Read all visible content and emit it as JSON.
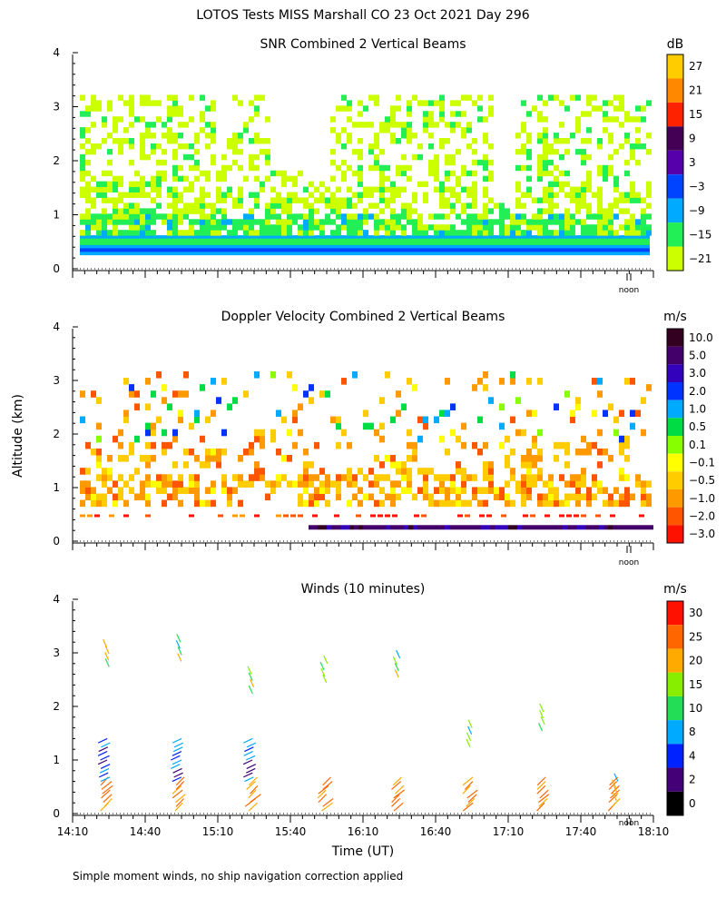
{
  "title": "LOTOS Tests MISS Marshall CO  23 Oct 2021 Day 296",
  "ylabel": "Altitude (km)",
  "xlabel": "Time (UT)",
  "footnote": "Simple moment winds, no ship navigation correction applied",
  "noon_label": "noon",
  "colors": {
    "text": "#000000",
    "axis": "#000000"
  },
  "chart_data": [
    {
      "type": "heatmap",
      "title": "SNR Combined 2 Vertical Beams",
      "units": "dB",
      "ylim": [
        0,
        4
      ],
      "yticks": [
        "0",
        "1",
        "2",
        "3",
        "4"
      ],
      "colorbar": {
        "labels": [
          "27",
          "21",
          "15",
          "9",
          "3",
          "−3",
          "−9",
          "−15",
          "−21"
        ],
        "colors": [
          "#ffcc00",
          "#ff8800",
          "#ff2200",
          "#440055",
          "#5500aa",
          "#0044ff",
          "#00aaff",
          "#22ee55",
          "#ccff00"
        ]
      },
      "layers": [
        {
          "name": "near-surface strong echo",
          "from_km": 0.25,
          "to_km": 0.65,
          "dominant_db": "-9"
        },
        {
          "name": "lower boundary layer",
          "from_km": 0.65,
          "to_km": 1.0,
          "dominant_db": "-15"
        },
        {
          "name": "upper patchy echoes",
          "from_km": 1.0,
          "to_km": 3.3,
          "dominant_db": "-21"
        }
      ]
    },
    {
      "type": "heatmap",
      "title": "Doppler Velocity Combined 2 Vertical Beams",
      "units": "m/s",
      "ylim": [
        0,
        4
      ],
      "yticks": [
        "0",
        "1",
        "2",
        "3",
        "4"
      ],
      "colorbar": {
        "labels": [
          "10.0",
          "5.0",
          "3.0",
          "2.0",
          "1.0",
          "0.5",
          "0.1",
          "−0.1",
          "−0.5",
          "−1.0",
          "−2.0",
          "−3.0"
        ],
        "colors": [
          "#330022",
          "#44006a",
          "#3300bb",
          "#0033ff",
          "#00aaff",
          "#00dd44",
          "#88ff00",
          "#ffff00",
          "#ffcc00",
          "#ff9900",
          "#ff5500",
          "#ff1100"
        ]
      }
    },
    {
      "type": "scatter",
      "title": "Winds (10 minutes)",
      "units": "m/s",
      "ylim": [
        0,
        4
      ],
      "yticks": [
        "0",
        "1",
        "2",
        "3",
        "4"
      ],
      "colorbar": {
        "labels": [
          "30",
          "25",
          "20",
          "15",
          "10",
          "8",
          "4",
          "2",
          "0"
        ],
        "colors": [
          "#ff1100",
          "#ff6600",
          "#ffaa00",
          "#88ee00",
          "#22dd55",
          "#00aaff",
          "#0022ff",
          "#440077",
          "#000000"
        ]
      },
      "profile_times": [
        "14:25",
        "14:55",
        "15:25",
        "15:55",
        "16:25",
        "16:55",
        "17:25",
        "17:55"
      ]
    }
  ],
  "xaxis": {
    "xlim": [
      "14:10",
      "18:10"
    ],
    "xticks": [
      "14:10",
      "14:40",
      "15:10",
      "15:40",
      "16:10",
      "16:40",
      "17:10",
      "17:40",
      "18:10"
    ]
  }
}
